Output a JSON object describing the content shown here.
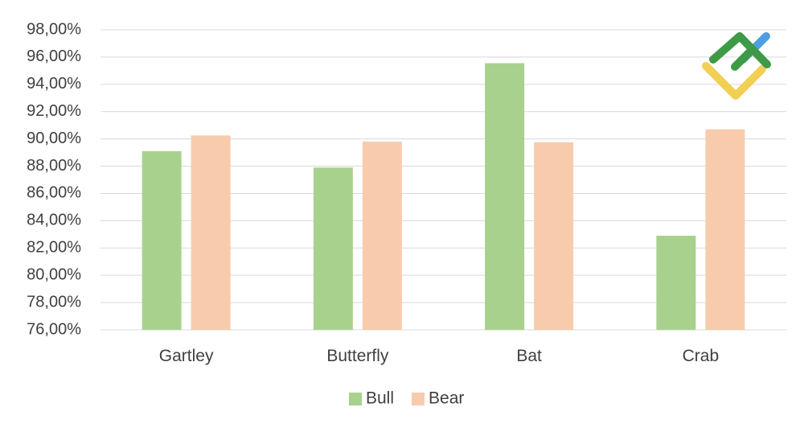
{
  "chart_data": {
    "type": "bar",
    "categories": [
      "Gartley",
      "Butterfly",
      "Bat",
      "Crab"
    ],
    "series": [
      {
        "name": "Bull",
        "values": [
          89.1,
          87.9,
          95.55,
          82.9
        ],
        "color": "#a9d18e"
      },
      {
        "name": "Bear",
        "values": [
          90.25,
          89.8,
          89.75,
          90.7
        ],
        "color": "#f8cbad"
      }
    ],
    "ylim": [
      76,
      98
    ],
    "ytick_step": 2,
    "ytick_labels": [
      "76,00%",
      "78,00%",
      "80,00%",
      "82,00%",
      "84,00%",
      "86,00%",
      "88,00%",
      "90,00%",
      "92,00%",
      "94,00%",
      "96,00%",
      "98,00%"
    ],
    "grid": true,
    "legend": "bottom",
    "title": "",
    "xlabel": "",
    "ylabel": ""
  },
  "logo": {
    "name": "brand-logo-icon",
    "colors": [
      "#3e9a47",
      "#4d9fe0",
      "#f2cf55"
    ]
  }
}
